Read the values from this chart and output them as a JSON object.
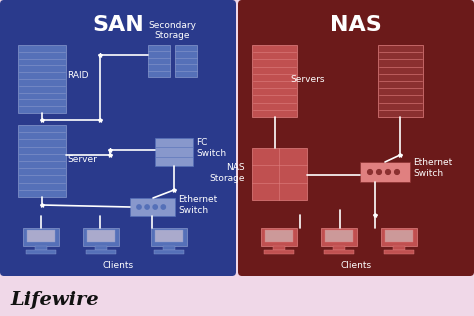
{
  "fig_width": 4.74,
  "fig_height": 3.16,
  "dpi": 100,
  "bg_color": "#f0d8e8",
  "san_bg": "#2a3a8c",
  "nas_bg": "#6b1a1a",
  "san_title": "SAN",
  "nas_title": "NAS",
  "title_color": "#ffffff",
  "title_fontsize": 16,
  "label_color": "#ffffff",
  "label_fontsize": 6.5,
  "line_color": "#ffffff",
  "lifewire_text": "Lifewire",
  "lifewire_color": "#111111",
  "lifewire_fontsize": 14,
  "san_blue_dark": "#3d5a99",
  "san_blue_mid": "#5570b8",
  "san_blue_light": "#8898cc",
  "nas_red_dark": "#8b3030",
  "nas_red_mid": "#c05050",
  "nas_red_light": "#e08080"
}
